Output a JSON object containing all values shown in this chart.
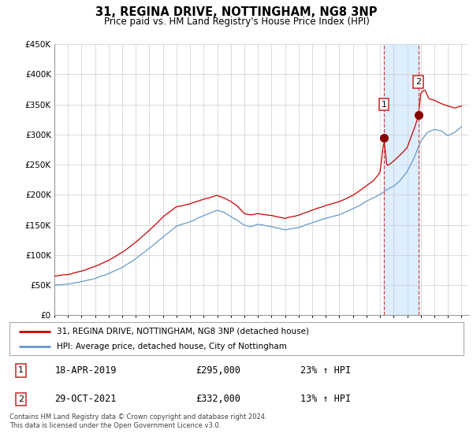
{
  "title": "31, REGINA DRIVE, NOTTINGHAM, NG8 3NP",
  "subtitle": "Price paid vs. HM Land Registry's House Price Index (HPI)",
  "ylim": [
    0,
    450000
  ],
  "yticks": [
    0,
    50000,
    100000,
    150000,
    200000,
    250000,
    300000,
    350000,
    400000,
    450000
  ],
  "sale1_date": "18-APR-2019",
  "sale1_price": 295000,
  "sale1_pct": "23%",
  "sale2_date": "29-OCT-2021",
  "sale2_price": 332000,
  "sale2_pct": "13%",
  "sale1_x": 2019.29,
  "sale2_x": 2021.83,
  "legend1": "31, REGINA DRIVE, NOTTINGHAM, NG8 3NP (detached house)",
  "legend2": "HPI: Average price, detached house, City of Nottingham",
  "footnote": "Contains HM Land Registry data © Crown copyright and database right 2024.\nThis data is licensed under the Open Government Licence v3.0.",
  "line_color_price": "#cc0000",
  "line_color_hpi": "#6699cc",
  "shade_color": "#ddeeff",
  "vline_color": "#cc3333",
  "background_color": "#ffffff",
  "grid_color": "#cccccc",
  "xlim_left": 1995.0,
  "xlim_right": 2025.5
}
